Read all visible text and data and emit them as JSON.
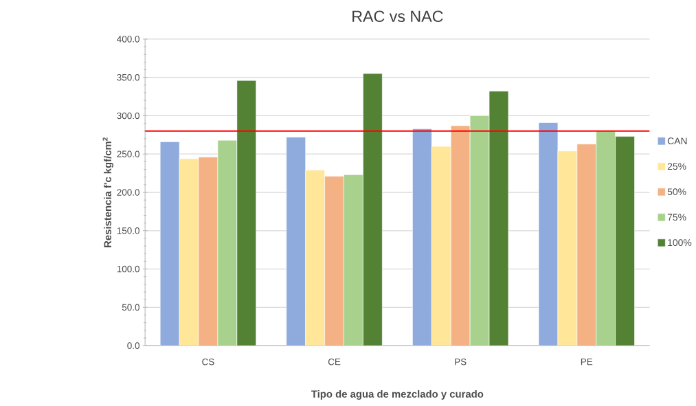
{
  "chart_data": {
    "type": "bar",
    "title": "RAC vs NAC",
    "xlabel": "Tipo de agua de mezclado y curado",
    "ylabel": "Resistencia f'c kgf/cm$^{2}$",
    "categories": [
      "CS",
      "CE",
      "PS",
      "PE"
    ],
    "series": [
      {
        "name": "CAN",
        "color": "#8faadc",
        "values": [
          266,
          272,
          283,
          291
        ]
      },
      {
        "name": "25%",
        "color": "#ffe699",
        "values": [
          244,
          229,
          260,
          254
        ]
      },
      {
        "name": "50%",
        "color": "#f4b183",
        "values": [
          246,
          221,
          287,
          263
        ]
      },
      {
        "name": "75%",
        "color": "#a9d18e",
        "values": [
          268,
          223,
          300,
          280
        ]
      },
      {
        "name": "100%",
        "color": "#548235",
        "values": [
          346,
          355,
          332,
          273
        ]
      }
    ],
    "ylim": [
      0,
      400
    ],
    "yticks": [
      {
        "value": 0,
        "label": "0.0"
      },
      {
        "value": 50,
        "label": "50.0"
      },
      {
        "value": 100,
        "label": "100.0"
      },
      {
        "value": 150,
        "label": "150.0"
      },
      {
        "value": 200,
        "label": "200.0"
      },
      {
        "value": 250,
        "label": "250.0"
      },
      {
        "value": 300,
        "label": "300.0"
      },
      {
        "value": 350,
        "label": "350.0"
      },
      {
        "value": 400,
        "label": "400.0"
      }
    ],
    "ref_lines": [
      {
        "axis": "y",
        "value": 280,
        "color": "#ff0000"
      }
    ],
    "grid": "y",
    "legend": "right"
  }
}
